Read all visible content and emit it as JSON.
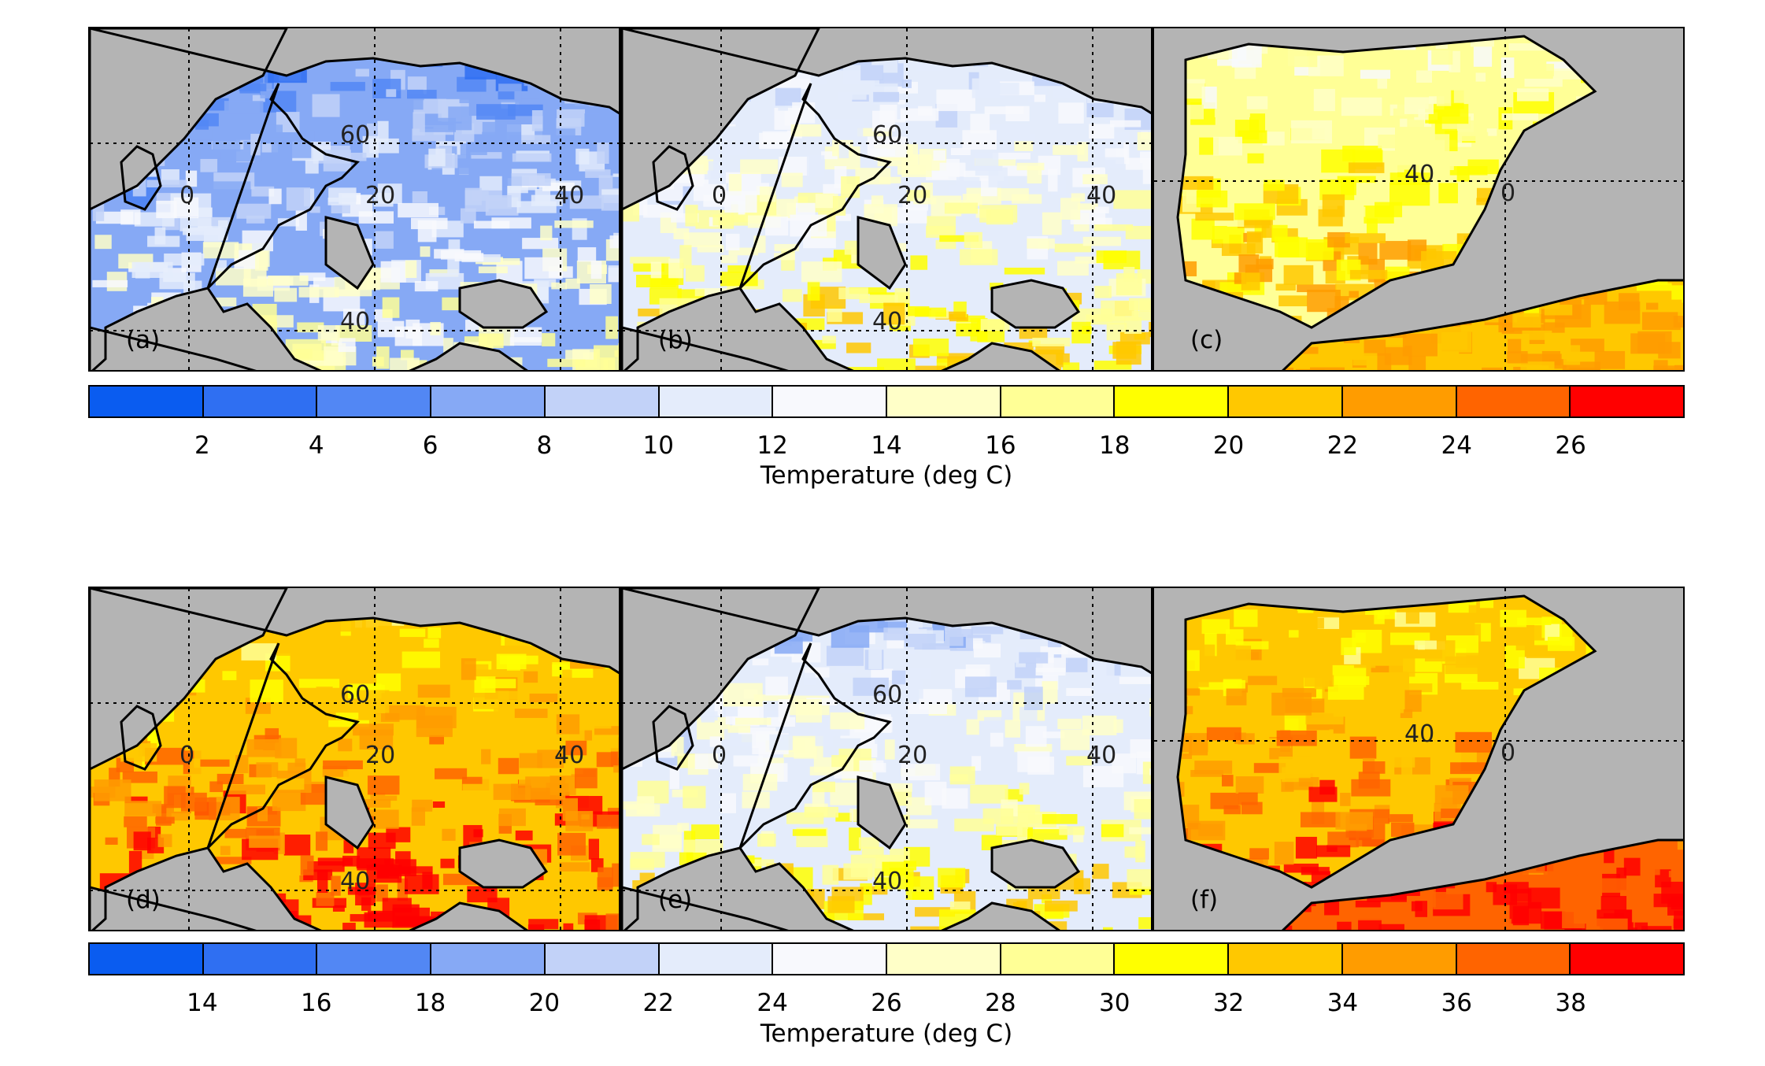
{
  "figure": {
    "rows": [
      {
        "panels": [
          {
            "label": "(a)",
            "region": "europe",
            "palette": "cool",
            "grid_labels": [
              "60",
              "0",
              "20",
              "40",
              "40"
            ]
          },
          {
            "label": "(b)",
            "region": "europe",
            "palette": "mild",
            "grid_labels": [
              "60",
              "0",
              "20",
              "40",
              "40"
            ]
          },
          {
            "label": "(c)",
            "region": "iberia",
            "palette": "warm",
            "grid_labels": [
              "40",
              "0"
            ]
          }
        ],
        "colorbar": {
          "ticks": [
            "2",
            "4",
            "6",
            "8",
            "10",
            "12",
            "14",
            "16",
            "18",
            "20",
            "22",
            "24",
            "26"
          ],
          "title": "Temperature (deg C)"
        }
      },
      {
        "panels": [
          {
            "label": "(d)",
            "region": "europe",
            "palette": "hot",
            "grid_labels": [
              "60",
              "0",
              "20",
              "40",
              "40"
            ]
          },
          {
            "label": "(e)",
            "region": "europe",
            "palette": "mild",
            "grid_labels": [
              "60",
              "0",
              "20",
              "40",
              "40"
            ]
          },
          {
            "label": "(f)",
            "region": "iberia",
            "palette": "hot",
            "grid_labels": [
              "40",
              "0"
            ]
          }
        ],
        "colorbar": {
          "ticks": [
            "14",
            "16",
            "18",
            "20",
            "22",
            "24",
            "26",
            "28",
            "30",
            "32",
            "34",
            "36",
            "38"
          ],
          "title": "Temperature (deg C)"
        }
      }
    ],
    "colorbar_colors": [
      "#0a5cf0",
      "#2f6ff2",
      "#5287f4",
      "#86a9f5",
      "#c2d2f8",
      "#e4ecfb",
      "#f8f9fd",
      "#ffffc8",
      "#ffff96",
      "#ffff00",
      "#ffc800",
      "#ff9c00",
      "#ff6400",
      "#ff0000"
    ],
    "sea_color": "#b4b4b4",
    "coast_color": "#000000"
  }
}
